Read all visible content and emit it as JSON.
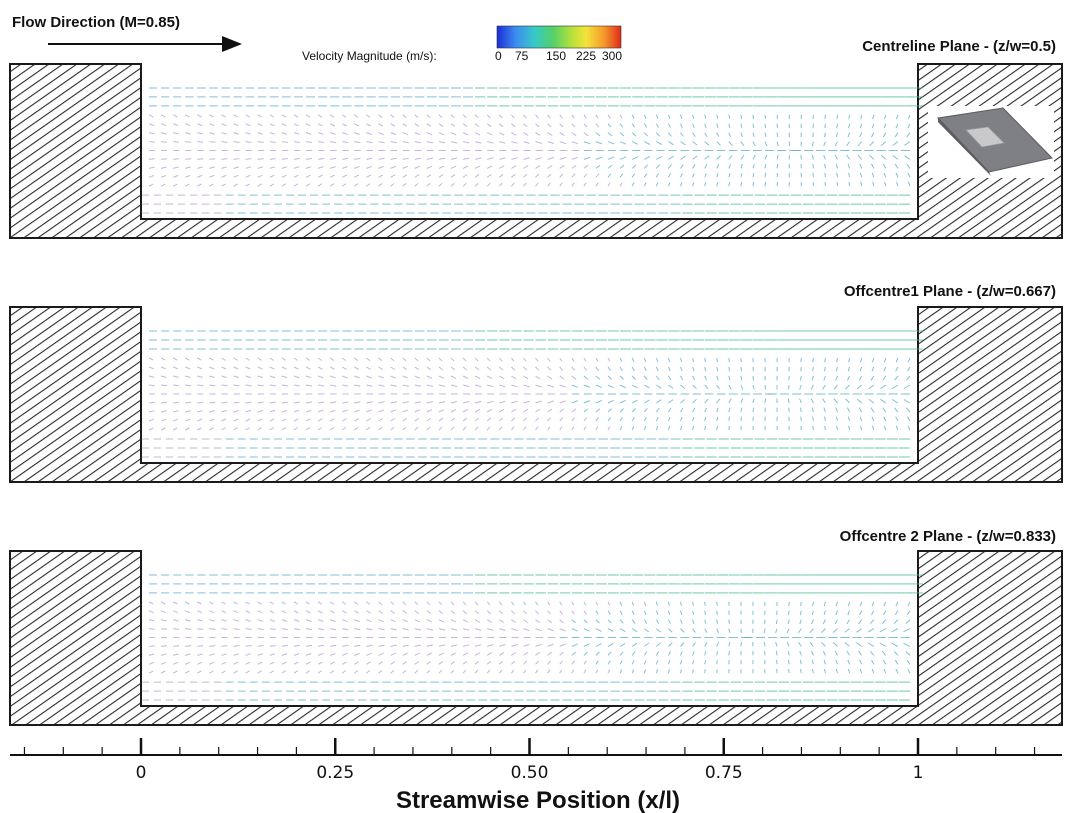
{
  "flow_label": "Flow Direction (M=0.85)",
  "colorbar": {
    "label": "Velocity Magnitude (m/s):",
    "ticks": [
      "0",
      "75",
      "150",
      "225",
      "300"
    ],
    "colors": [
      "#1a2fd6",
      "#3d8bf0",
      "#36c9c9",
      "#52d06a",
      "#b5e03a",
      "#f5e23a",
      "#f59a2a",
      "#e02a1a"
    ]
  },
  "panels": [
    {
      "title": "Centreline Plane - (z/w=0.5)",
      "has_inset": true
    },
    {
      "title": "Offcentre1 Plane - (z/w=0.667)",
      "has_inset": false
    },
    {
      "title": "Offcentre 2 Plane - (z/w=0.833)",
      "has_inset": false
    }
  ],
  "axis": {
    "title": "Streamwise Position (x/l)",
    "ticks": [
      {
        "value": 0,
        "label": "0"
      },
      {
        "value": 0.25,
        "label": "0.25"
      },
      {
        "value": 0.5,
        "label": "0.50"
      },
      {
        "value": 0.75,
        "label": "0.75"
      },
      {
        "value": 1,
        "label": "1"
      }
    ],
    "range": [
      -0.165,
      1.185
    ],
    "minor_step": 0.05
  },
  "colors": {
    "wall_stroke": "#1a1a1a",
    "hatch": "#2a2a2a",
    "vector_slow": "#b39bd0",
    "vector_mid": "#5aa9c9",
    "vector_fast": "#3fb890"
  }
}
